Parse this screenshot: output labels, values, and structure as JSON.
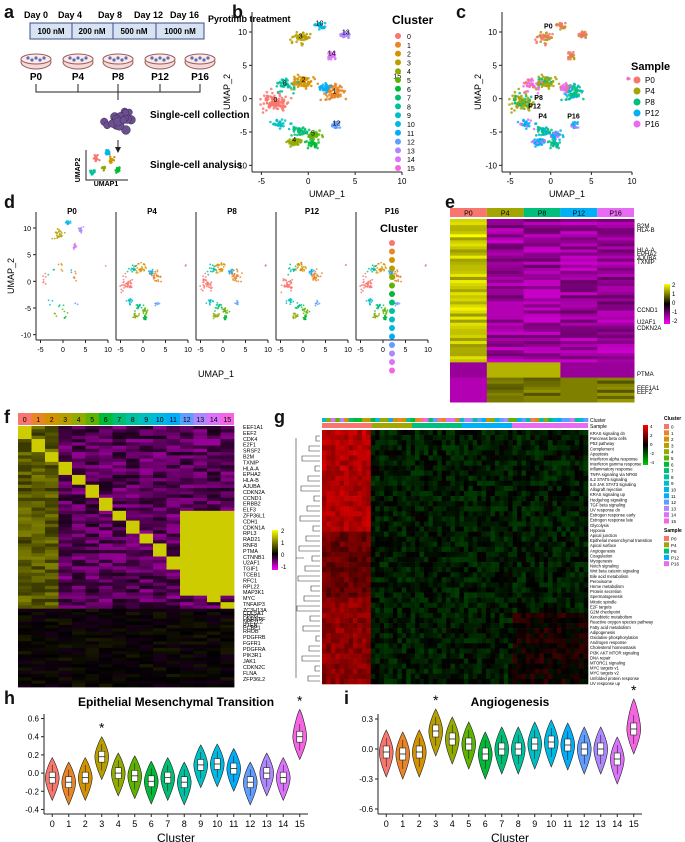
{
  "panel_labels": {
    "a": "a",
    "b": "b",
    "c": "c",
    "d": "d",
    "e": "e",
    "f": "f",
    "g": "g",
    "h": "h",
    "i": "i"
  },
  "colors": {
    "clusters": [
      "#F8766D",
      "#E88526",
      "#D39200",
      "#B79F00",
      "#93AA00",
      "#5EB300",
      "#00BA38",
      "#00BF74",
      "#00C19F",
      "#00BFC4",
      "#00B9E3",
      "#00ADFA",
      "#619CFF",
      "#AE87FF",
      "#DB72FB",
      "#F564E3"
    ],
    "samples": [
      "#F8766D",
      "#A3A500",
      "#00BF7D",
      "#00B0F6",
      "#E76BF3"
    ],
    "heat_low": "#FF00FF",
    "heat_mid": "#000000",
    "heat_high": "#FFFF00",
    "gsva_low": "#00CC00",
    "gsva_mid": "#000000",
    "gsva_high": "#FF0000"
  },
  "icons": {
    "cell": "petri-dish-icon",
    "cluster": "cell-cluster-icon",
    "umap": "umap-thumbnail-icon"
  },
  "panel_a": {
    "days": [
      "Day 0",
      "Day 4",
      "Day 8",
      "Day 12",
      "Day 16"
    ],
    "doses": [
      "100 nM",
      "200 nM",
      "500 nM",
      "1000 nM"
    ],
    "treatment": "Pyrotinib treatment",
    "passages": [
      "P0",
      "P4",
      "P8",
      "P12",
      "P16"
    ],
    "step1": "Single-cell collection",
    "step2": "Single-cell analysis",
    "umap_x": "UMAP1",
    "umap_y": "UMAP2"
  },
  "panel_b": {
    "legend_title": "Cluster",
    "clusters": [
      "0",
      "1",
      "2",
      "3",
      "4",
      "5",
      "6",
      "7",
      "8",
      "9",
      "10",
      "11",
      "12",
      "13",
      "14",
      "15"
    ],
    "xlabel": "UMAP_1",
    "ylabel": "UMAP_2",
    "xticks": [
      "-5",
      "0",
      "5",
      "10"
    ],
    "yticks": [
      "10",
      "5",
      "0",
      "-5",
      "-10"
    ]
  },
  "panel_c": {
    "legend_title": "Sample",
    "samples": [
      "P0",
      "P4",
      "P8",
      "P12",
      "P16"
    ],
    "xlabel": "UMAP_1",
    "ylabel": "UMAP_2",
    "xticks": [
      "-5",
      "0",
      "5",
      "10"
    ],
    "yticks": [
      "10",
      "5",
      "0",
      "-5",
      "-10"
    ]
  },
  "panel_d": {
    "facets": [
      "P0",
      "P4",
      "P8",
      "P12",
      "P16"
    ],
    "xlabel": "UMAP_1",
    "ylabel": "UMAP_2",
    "legend_title": "Cluster",
    "xticks": [
      "-5",
      "0",
      "5",
      "10"
    ],
    "yticks": [
      "10",
      "5",
      "0",
      "-5",
      "-10"
    ]
  },
  "panel_e": {
    "samples": [
      "P0",
      "P4",
      "P8",
      "P12",
      "P16"
    ],
    "genes": [
      "B2M",
      "HLA-B",
      "HLA-A",
      "EPHA2",
      "AJUBA",
      "TXNIP",
      "CCND1",
      "U2AF1",
      "CDKN2A",
      "PTMA",
      "EEF1A1",
      "EEF2"
    ],
    "scale": [
      "2",
      "1",
      "0",
      "-1",
      "-2"
    ]
  },
  "panel_f": {
    "clusters": [
      "0",
      "1",
      "2",
      "3",
      "4",
      "5",
      "6",
      "7",
      "8",
      "9",
      "10",
      "11",
      "12",
      "13",
      "14",
      "15"
    ],
    "genes": [
      "EEF1A1",
      "EEF2",
      "CDK4",
      "E2F1",
      "SRSF2",
      "B2M",
      "TXNIP",
      "HLA-A",
      "EPHA2",
      "HLA-B",
      "AJUBA",
      "CDKN2A",
      "CCND1",
      "ERBB2",
      "ELF3",
      "ZFP36L1",
      "CDH1",
      "CDKN1A",
      "RPL3",
      "RAD21",
      "RNF8",
      "PTMA",
      "CTNNB1",
      "U2AF1",
      "TGIF1",
      "TCEB1",
      "RFC1",
      "RPL22",
      "MAP3K1",
      "MYC",
      "TNFAIP3",
      "ZC3H13A",
      "PPP6C",
      "NFE2L2",
      "PCBP1",
      "COL5A1",
      "HNRNPF",
      "PTEN",
      "RHOB",
      "PDGFRB",
      "FGFR1",
      "PDGFRA",
      "PIK3R1",
      "JAK1",
      "CDKN2C",
      "FLNA",
      "ZFP36L2"
    ],
    "scale": [
      "2",
      "1",
      "0",
      "-1"
    ]
  },
  "panel_g": {
    "track_labels": [
      "Cluster",
      "Sample"
    ],
    "pathways": [
      "KRAS signaling dn",
      "Pancreas beta cells",
      "P53 pathway",
      "Complement",
      "Apoptosis",
      "Interferon alpha response",
      "Interferon gamma response",
      "Inflammatory response",
      "TNFA signaling via NFKB",
      "IL2 STAT5 signaling",
      "IL6 JAK STAT3 signaling",
      "Allograft rejection",
      "KRAS signaling up",
      "Hedgehog signaling",
      "TGF beta signaling",
      "UV response dn",
      "Estrogen response early",
      "Estrogen response late",
      "Glycolysis",
      "Hypoxia",
      "Apical junction",
      "Epithelial mesenchymal transition",
      "Apical surface",
      "Angiogenesis",
      "Coagulation",
      "Myogenesis",
      "Notch signaling",
      "Wnt beta catenin signaling",
      "Bile acid metabolism",
      "Peroxisome",
      "Heme metabolism",
      "Protein secretion",
      "Spermatogenesis",
      "Mitotic spindle",
      "E2F targets",
      "G2M checkpoint",
      "Xenobiotic metabolism",
      "Reactive oxygen species pathway",
      "Fatty acid metabolism",
      "Adipogenesis",
      "Oxidative phosphorylation",
      "Androgen response",
      "Cholesterol homeostasis",
      "PI3K AKT MTOR signaling",
      "DNA repair",
      "MTORC1 signaling",
      "MYC targets v1",
      "MYC targets v2",
      "Unfolded protein response",
      "UV response up"
    ],
    "legend_cluster": "Cluster",
    "legend_sample": "Sample",
    "scale": [
      "4",
      "2",
      "0",
      "-2",
      "-4"
    ],
    "clusters": [
      "0",
      "1",
      "2",
      "3",
      "4",
      "5",
      "6",
      "7",
      "8",
      "9",
      "10",
      "11",
      "12",
      "13",
      "14",
      "15"
    ],
    "samples": [
      "P0",
      "P4",
      "P8",
      "P12",
      "P16"
    ]
  },
  "chart_data": [
    {
      "type": "violin",
      "title": "Epithelial Mesenchymal Transition",
      "xlabel": "Cluster",
      "ylabel": "",
      "categories": [
        "0",
        "1",
        "2",
        "3",
        "4",
        "5",
        "6",
        "7",
        "8",
        "9",
        "10",
        "11",
        "12",
        "13",
        "14",
        "15"
      ],
      "medians": [
        -0.05,
        -0.1,
        -0.05,
        0.18,
        0.0,
        -0.03,
        -0.09,
        -0.05,
        -0.1,
        0.09,
        0.1,
        0.05,
        -0.1,
        0.0,
        -0.05,
        0.4
      ],
      "ylim": [
        -0.45,
        0.65
      ],
      "yticks": [
        "0.6",
        "0.4",
        "0.2",
        "0.0",
        "-0.2",
        "-0.4"
      ],
      "significant": [
        "3",
        "15"
      ],
      "marker": "*"
    },
    {
      "type": "violin",
      "title": "Angiogenesis",
      "xlabel": "Cluster",
      "ylabel": "",
      "categories": [
        "0",
        "1",
        "2",
        "3",
        "4",
        "5",
        "6",
        "7",
        "8",
        "9",
        "10",
        "11",
        "12",
        "13",
        "14",
        "15"
      ],
      "medians": [
        -0.03,
        -0.05,
        -0.03,
        0.18,
        0.1,
        0.05,
        -0.05,
        0.0,
        0.0,
        0.05,
        0.07,
        0.04,
        0.0,
        0.0,
        -0.1,
        0.2
      ],
      "ylim": [
        -0.65,
        0.35
      ],
      "yticks": [
        "0.3",
        "0.0",
        "-0.3",
        "-0.6"
      ],
      "significant": [
        "3",
        "15"
      ],
      "marker": "*"
    }
  ]
}
